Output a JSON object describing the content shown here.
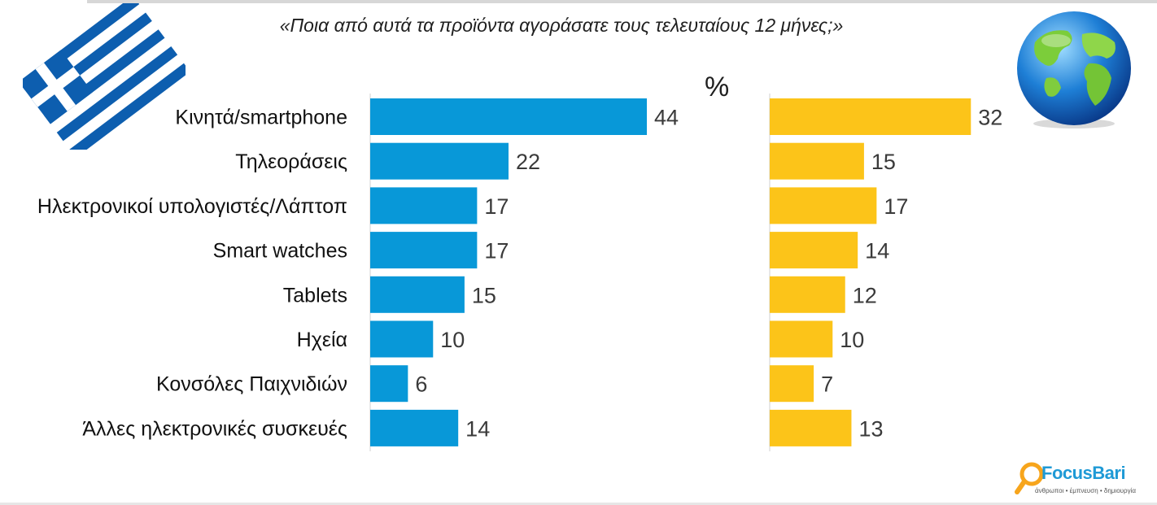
{
  "question": "«Ποια από αυτά τα προϊόντα αγοράσατε τους τελευταίους 12 μήνες;»",
  "unit_label": "%",
  "logo": {
    "name": "FocusBari",
    "tagline": "άνθρωποι • έμπνευση • δημιουργία"
  },
  "colors": {
    "greece": "#0898d8",
    "global": "#fcc419",
    "flag_blue": "#0d5eaf"
  },
  "chart_data": {
    "type": "bar",
    "orientation": "horizontal",
    "categories": [
      "Κινητά/smartphone",
      "Τηλεοράσεις",
      "Ηλεκτρονικοί υπολογιστές/Λάπτοπ",
      "Smart watches",
      "Tablets",
      "Ηχεία",
      "Κονσόλες Παιχνιδιών",
      "Άλλες ηλεκτρονικές συσκευές"
    ],
    "series": [
      {
        "values": [
          44,
          22,
          17,
          17,
          15,
          10,
          6,
          14
        ],
        "color": "#0898d8",
        "icon": "greek-flag-icon"
      },
      {
        "values": [
          32,
          15,
          17,
          14,
          12,
          10,
          7,
          13
        ],
        "color": "#fcc419",
        "icon": "globe-icon"
      }
    ],
    "xlim": [
      0,
      44
    ],
    "data_labels": true,
    "grid": false
  }
}
